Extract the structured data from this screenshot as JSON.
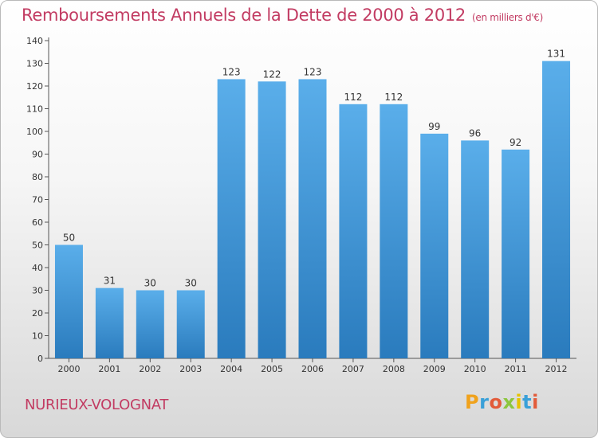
{
  "page": {
    "title": "Remboursements Annuels de la Dette de 2000 à 2012",
    "subtitle": "(en milliers d'€)",
    "commune": "NURIEUX-VOLOGNAT",
    "logo_letters": [
      "P",
      "r",
      "o",
      "x",
      "i",
      "t",
      "i"
    ]
  },
  "colors": {
    "title": "#c23b62",
    "bar_top": "#5aaeea",
    "bar_bottom": "#2a7bbd",
    "axis": "#555555",
    "grid": "#d6d6d6"
  },
  "chart_data": {
    "type": "bar",
    "title": "Remboursements Annuels de la Dette de 2000 à 2012",
    "subtitle": "(en milliers d'€)",
    "xlabel": "",
    "ylabel": "",
    "categories": [
      "2000",
      "2001",
      "2002",
      "2003",
      "2004",
      "2005",
      "2006",
      "2007",
      "2008",
      "2009",
      "2010",
      "2011",
      "2012"
    ],
    "values": [
      50,
      31,
      30,
      30,
      123,
      122,
      123,
      112,
      112,
      99,
      96,
      92,
      131
    ],
    "ylim": [
      0,
      140
    ],
    "yticks": [
      0,
      10,
      20,
      30,
      40,
      50,
      60,
      70,
      80,
      90,
      100,
      110,
      120,
      130,
      140
    ],
    "grid": false,
    "legend": "none"
  }
}
